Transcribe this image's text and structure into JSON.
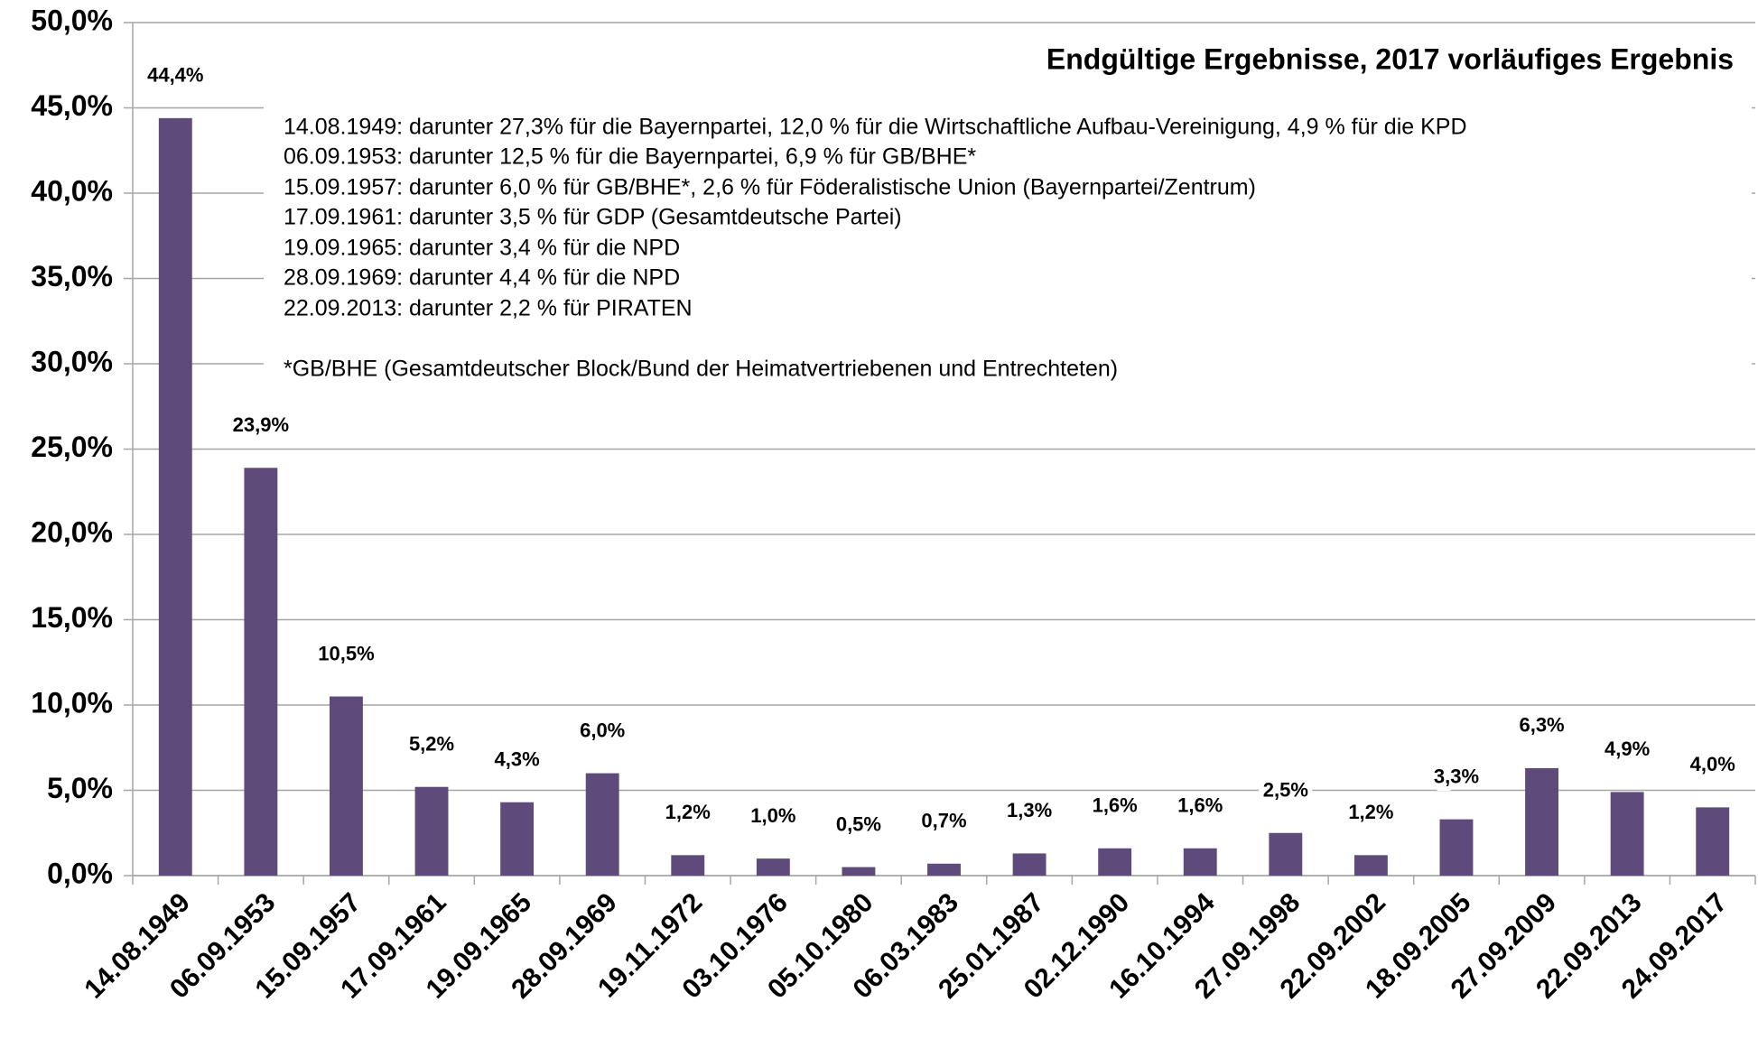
{
  "chart_data": {
    "type": "bar",
    "title": "Endgültige Ergebnisse, 2017 vorläufiges Ergebnis",
    "notes": [
      "14.08.1949: darunter 27,3% für die Bayernpartei, 12,0 % für die Wirtschaftliche Aufbau-Vereinigung, 4,9 % für die KPD",
      "06.09.1953: darunter 12,5 % für die Bayernpartei, 6,9 % für GB/BHE*",
      "15.09.1957: darunter 6,0 % für GB/BHE*, 2,6 % für Föderalistische Union (Bayernpartei/Zentrum)",
      "17.09.1961: darunter 3,5 % für GDP (Gesamtdeutsche Partei)",
      "19.09.1965: darunter 3,4 % für die NPD",
      "28.09.1969: darunter 4,4 % für die NPD",
      "22.09.2013: darunter 2,2 % für PIRATEN"
    ],
    "footnote": "*GB/BHE (Gesamtdeutscher Block/Bund der Heimatvertriebenen und Entrechteten)",
    "categories": [
      "14.08.1949",
      "06.09.1953",
      "15.09.1957",
      "17.09.1961",
      "19.09.1965",
      "28.09.1969",
      "19.11.1972",
      "03.10.1976",
      "05.10.1980",
      "06.03.1983",
      "25.01.1987",
      "02.12.1990",
      "16.10.1994",
      "27.09.1998",
      "22.09.2002",
      "18.09.2005",
      "27.09.2009",
      "22.09.2013",
      "24.09.2017"
    ],
    "values": [
      44.4,
      23.9,
      10.5,
      5.2,
      4.3,
      6.0,
      1.2,
      1.0,
      0.5,
      0.7,
      1.3,
      1.6,
      1.6,
      2.5,
      1.2,
      3.3,
      6.3,
      4.9,
      4.0
    ],
    "value_labels": [
      "44,4%",
      "23,9%",
      "10,5%",
      "5,2%",
      "4,3%",
      "6,0%",
      "1,2%",
      "1,0%",
      "0,5%",
      "0,7%",
      "1,3%",
      "1,6%",
      "1,6%",
      "2,5%",
      "1,2%",
      "3,3%",
      "6,3%",
      "4,9%",
      "4,0%"
    ],
    "color": "#5f4b7b",
    "ylim": [
      0,
      50
    ],
    "yticks": [
      {
        "value": 0,
        "label": "0,0%"
      },
      {
        "value": 5,
        "label": "5,0%"
      },
      {
        "value": 10,
        "label": "10,0%"
      },
      {
        "value": 15,
        "label": "15,0%"
      },
      {
        "value": 20,
        "label": "20,0%"
      },
      {
        "value": 25,
        "label": "25,0%"
      },
      {
        "value": 30,
        "label": "30,0%"
      },
      {
        "value": 35,
        "label": "35,0%"
      },
      {
        "value": 40,
        "label": "40,0%"
      },
      {
        "value": 45,
        "label": "45,0%"
      },
      {
        "value": 50,
        "label": "50,0%"
      }
    ],
    "grid": true
  }
}
